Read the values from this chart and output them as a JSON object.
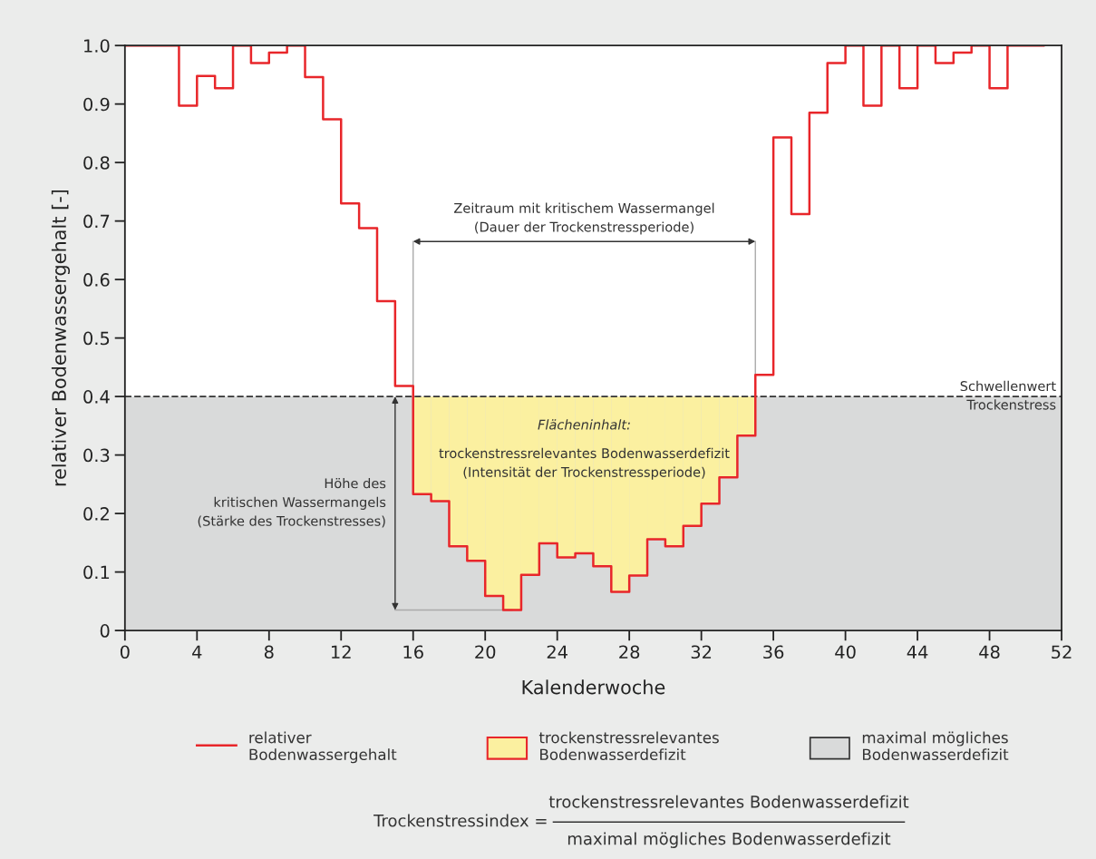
{
  "chart_data": {
    "type": "step",
    "xlabel": "Kalenderwoche",
    "ylabel": "relativer Bodenwassergehalt [-]",
    "xlim": [
      0,
      52
    ],
    "xticks": [
      0,
      4,
      8,
      12,
      16,
      20,
      24,
      28,
      32,
      36,
      40,
      44,
      48,
      52
    ],
    "ylim": [
      0,
      1.0
    ],
    "yticks": [
      {
        "value": 0,
        "label": "0"
      },
      0.1,
      0.2,
      0.3,
      0.4,
      0.5,
      0.6,
      0.7,
      0.8,
      0.9,
      {
        "value": 1.0,
        "label": "1.0"
      }
    ],
    "series": [
      {
        "name": "relativer\nBodenwassergehalt",
        "color": "#e8262a",
        "x": [
          0,
          1,
          2,
          3,
          4,
          5,
          6,
          7,
          8,
          9,
          10,
          11,
          12,
          13,
          14,
          15,
          16,
          17,
          18,
          19,
          20,
          21,
          22,
          23,
          24,
          25,
          26,
          27,
          28,
          29,
          30,
          31,
          32,
          33,
          34,
          35,
          36,
          37,
          38,
          39,
          40,
          41,
          42,
          43,
          44,
          45,
          46,
          47,
          48,
          49,
          50,
          51
        ],
        "values": [
          1.0,
          1.0,
          1.0,
          0.897,
          0.948,
          0.927,
          1.0,
          0.97,
          0.988,
          1.0,
          0.946,
          0.874,
          0.73,
          0.688,
          0.563,
          0.418,
          0.233,
          0.221,
          0.144,
          0.119,
          0.059,
          0.035,
          0.095,
          0.149,
          0.125,
          0.132,
          0.11,
          0.066,
          0.094,
          0.156,
          0.144,
          0.179,
          0.217,
          0.262,
          0.333,
          0.437,
          0.843,
          0.712,
          0.885,
          0.97,
          1.0,
          0.897,
          1.0,
          0.927,
          1.0,
          0.97,
          0.988,
          1.0,
          0.927,
          1.0,
          1.0,
          1.0
        ]
      },
      {
        "name": "trockenstressrelevantes\nBodenwasserdefizit",
        "type": "bar",
        "color": "#fbf0a0",
        "x": [
          16.5,
          17.5,
          18.5,
          19.5,
          20.5,
          21.5,
          22.5,
          23.5,
          24.5,
          25.5,
          26.5,
          27.5,
          28.5,
          29.5,
          30.5,
          31.5,
          32.5,
          33.5,
          34.5
        ],
        "base": [
          0.233,
          0.221,
          0.144,
          0.119,
          0.059,
          0.035,
          0.095,
          0.149,
          0.125,
          0.132,
          0.11,
          0.066,
          0.094,
          0.156,
          0.144,
          0.179,
          0.217,
          0.262,
          0.333
        ],
        "values": [
          0.167,
          0.179,
          0.256,
          0.281,
          0.341,
          0.365,
          0.305,
          0.251,
          0.275,
          0.268,
          0.29,
          0.334,
          0.306,
          0.244,
          0.256,
          0.221,
          0.183,
          0.138,
          0.067
        ]
      }
    ],
    "bands": [
      {
        "axis": "y",
        "from": 0,
        "to": 0.4,
        "label": "maximal mögliches\nBodenwasserdefizit",
        "color": "#d9dada"
      }
    ],
    "ref_lines": [
      {
        "axis": "y",
        "value": 0.4,
        "label": "Schwellenwert\nTrockenstress",
        "color": "#333333",
        "line_style": "dashed"
      }
    ],
    "annotations": [
      "Zeitraum mit kritischem Wassermangel\n(Dauer der Trockenstressperiode)",
      "Höhe des\nkritischen Wassermangels\n(Stärke des Trockenstresses)",
      "Flächeninhalt:",
      "trockenstressrelevantes Bodenwasserdefizit\n(Intensität der Trockenstressperiode)",
      "Trockenstressindex =",
      "trockenstressrelevantes Bodenwasserdefizit",
      "maximal mögliches Bodenwasserdefizit"
    ],
    "legend": "bottom",
    "grid": false,
    "line_style": "solid",
    "marker": "none"
  }
}
